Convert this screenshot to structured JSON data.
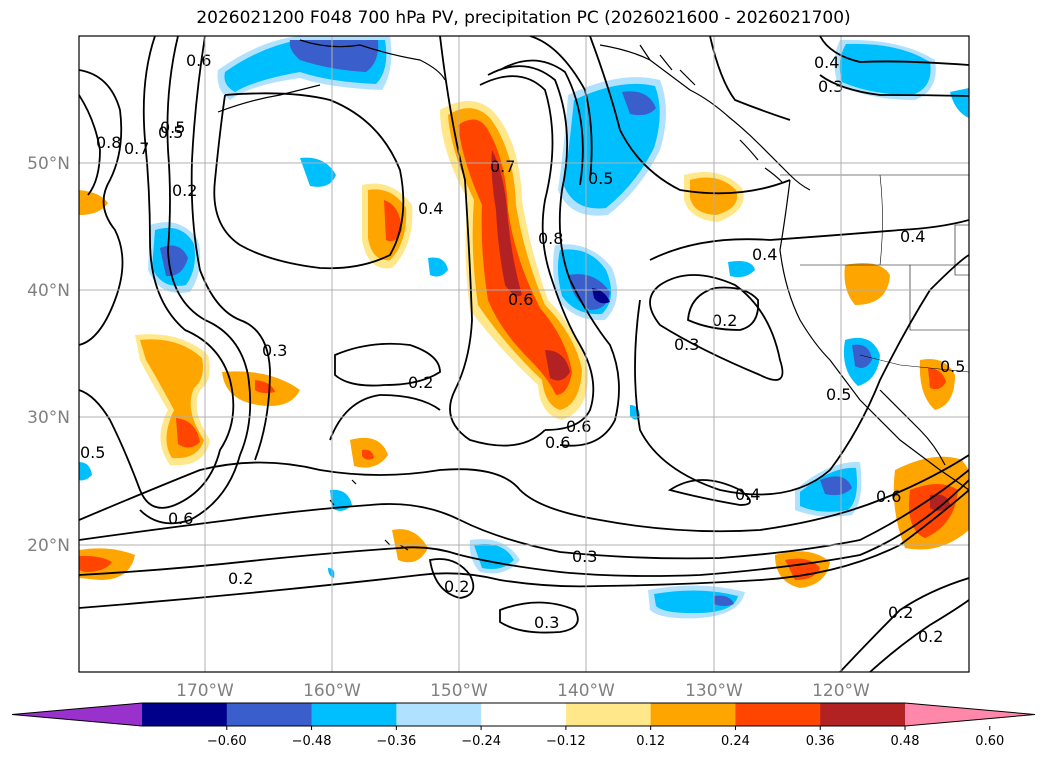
{
  "title": "2026021200 F048 700 hPa PV, precipitation PC (2026021600 - 2026021700)",
  "axes": {
    "lat_labels": [
      "50°N",
      "40°N",
      "30°N",
      "20°N"
    ],
    "lon_labels": [
      "170°W",
      "160°W",
      "150°W",
      "140°W",
      "130°W",
      "120°W"
    ]
  },
  "colorbar": {
    "tick_labels": [
      "−0.60",
      "−0.48",
      "−0.36",
      "−0.24",
      "−0.12",
      "0.12",
      "0.24",
      "0.36",
      "0.48",
      "0.60"
    ],
    "colors": [
      "#9932cc",
      "#00008b",
      "#3a5fcd",
      "#00bfff",
      "#b0e2ff",
      "#ffffff",
      "#ffe78a",
      "#ffa500",
      "#ff4500",
      "#b22222",
      "#ff88aa"
    ]
  },
  "chart_data": {
    "type": "map",
    "title": "2026021200 F048 700 hPa PV, precipitation PC (2026021600 - 2026021700)",
    "lat_range": [
      10,
      60
    ],
    "lon_range": [
      -180,
      -110
    ],
    "contour_labels": [
      "0.6",
      "0.8",
      "0.7",
      "0.5",
      "0.2",
      "0.4",
      "0.3",
      "0.2",
      "0.5",
      "0.6",
      "0.7",
      "0.8",
      "0.6",
      "0.5",
      "0.4",
      "0.3",
      "0.4",
      "0.2",
      "0.3",
      "0.6",
      "0.5",
      "0.4",
      "0.6",
      "0.3",
      "0.2",
      "0.3",
      "0.2",
      "0.2",
      "0.2",
      "0.4",
      "0.5",
      "0.5",
      "0.6"
    ],
    "colorbar_levels": [
      -0.6,
      -0.48,
      -0.36,
      -0.24,
      -0.12,
      0.12,
      0.24,
      0.36,
      0.48,
      0.6
    ]
  }
}
